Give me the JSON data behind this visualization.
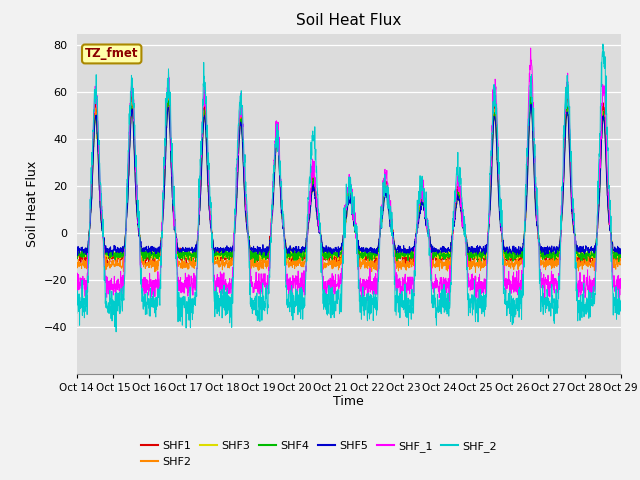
{
  "title": "Soil Heat Flux",
  "xlabel": "Time",
  "ylabel": "Soil Heat Flux",
  "ylim": [
    -60,
    85
  ],
  "yticks": [
    -40,
    -20,
    0,
    20,
    40,
    60,
    80
  ],
  "x_labels": [
    "Oct 14",
    "Oct 15",
    "Oct 16",
    "Oct 17",
    "Oct 18",
    "Oct 19",
    "Oct 20",
    "Oct 21",
    "Oct 22",
    "Oct 23",
    "Oct 24",
    "Oct 25",
    "Oct 26",
    "Oct 27",
    "Oct 28",
    "Oct 29"
  ],
  "annotation_text": "TZ_fmet",
  "annotation_color": "#8B0000",
  "annotation_bg": "#FFFFAA",
  "annotation_border": "#AA8800",
  "series_colors": {
    "SHF1": "#DD0000",
    "SHF2": "#FF8800",
    "SHF3": "#DDDD00",
    "SHF4": "#00BB00",
    "SHF5": "#0000CC",
    "SHF_1": "#FF00FF",
    "SHF_2": "#00CCCC"
  },
  "bg_color": "#DCDCDC",
  "grid_color": "#FFFFFF",
  "fig_bg": "#F2F2F2"
}
